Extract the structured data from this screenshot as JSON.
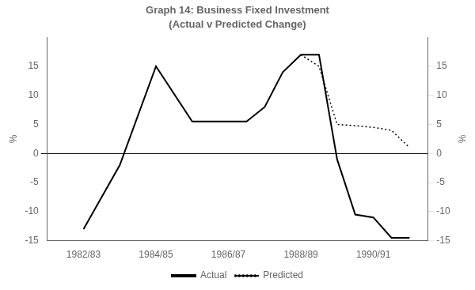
{
  "chart_data": {
    "type": "line",
    "title": "Graph 14: Business Fixed Investment",
    "subtitle": "(Actual v Predicted Change)",
    "ylabel": "%",
    "y2label": "%",
    "xlim": [
      1981.5,
      1992.0
    ],
    "xticks": [
      {
        "value": 1982.5,
        "label": "1982/83"
      },
      {
        "value": 1984.5,
        "label": "1984/85"
      },
      {
        "value": 1986.5,
        "label": "1986/87"
      },
      {
        "value": 1988.5,
        "label": "1988/89"
      },
      {
        "value": 1990.5,
        "label": "1990/91"
      }
    ],
    "ylim": [
      -15,
      20
    ],
    "yticks": [
      -15,
      -10,
      -5,
      0,
      5,
      10,
      15
    ],
    "y2lim": [
      -15,
      20
    ],
    "y2ticks": [
      -15,
      -10,
      -5,
      0,
      5,
      10,
      15
    ],
    "grid": false,
    "legend": "bottom",
    "series": [
      {
        "name": "Actual",
        "color": "#000000",
        "line_style": "solid",
        "x": [
          1982.5,
          1983.5,
          1984.5,
          1985.5,
          1986.0,
          1986.5,
          1987.0,
          1987.5,
          1988.0,
          1988.5,
          1989.0,
          1989.5,
          1990.0,
          1990.5,
          1991.0,
          1991.5
        ],
        "values": [
          -13,
          -2,
          15,
          5.5,
          5.5,
          5.5,
          5.5,
          8,
          14,
          17,
          17,
          -1,
          -10.5,
          -11,
          -14.5,
          -14.5
        ]
      },
      {
        "name": "Predicted",
        "color": "#000000",
        "line_style": "dotted",
        "x": [
          1988.5,
          1989.0,
          1989.5,
          1990.0,
          1990.5,
          1991.0,
          1991.5
        ],
        "values": [
          17,
          15,
          5,
          4.8,
          4.5,
          4.0,
          1.0
        ]
      }
    ]
  }
}
